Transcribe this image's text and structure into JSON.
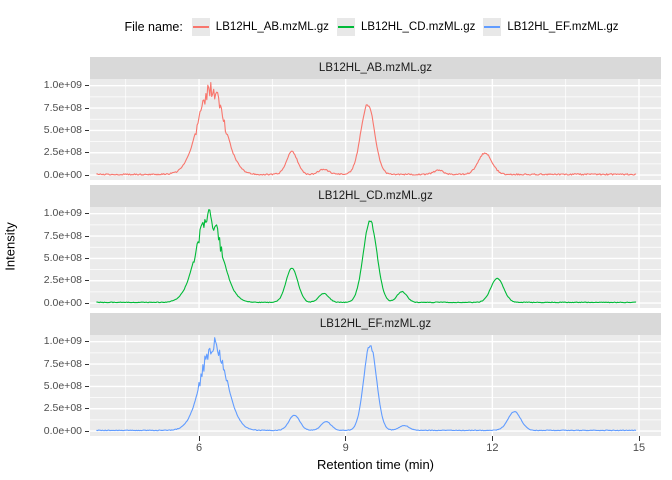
{
  "legend": {
    "title": "File name:",
    "items": [
      {
        "label": "LB12HL_AB.mzML.gz",
        "color": "#F8766D"
      },
      {
        "label": "LB12HL_CD.mzML.gz",
        "color": "#00BA38"
      },
      {
        "label": "LB12HL_EF.mzML.gz",
        "color": "#619CFF"
      }
    ],
    "key_fill": "#E8E8E8"
  },
  "chart_data": {
    "type": "line",
    "title": "",
    "xlabel": "Retention time (min)",
    "ylabel": "Intensity",
    "legend_position": "top",
    "grid": true,
    "facet_layout": "rows",
    "xlim": [
      3.77,
      15.45
    ],
    "ylim": [
      -55000000,
      1075000000
    ],
    "x_major_ticks": [
      6,
      9,
      12,
      15
    ],
    "x_tick_labels": [
      "6",
      "9",
      "12",
      "15"
    ],
    "x_minor_ticks": [
      4.5,
      7.5,
      10.5,
      13.5
    ],
    "y_major_ticks": [
      1000000000,
      750000000,
      500000000,
      250000000,
      0
    ],
    "y_tick_labels": [
      "1.0e+09",
      "7.5e+08",
      "5.0e+08",
      "2.5e+08",
      "0.0e+00"
    ],
    "y_minor_ticks": [
      125000000,
      375000000,
      625000000,
      875000000
    ],
    "panel_fill": "#EBEBEB",
    "strip_fill": "#D9D9D9",
    "gridline_color": "#FFFFFF",
    "sample_x_range": [
      3.9,
      14.95
    ],
    "sample_step": 0.02,
    "baseline_intensity": 8000000,
    "facets": [
      {
        "title": "LB12HL_AB.mzML.gz",
        "color": "#F8766D",
        "baseline_noise": 8000000,
        "peaks": [
          {
            "rt": 6.25,
            "intensity": 955000000,
            "sigma": 0.27,
            "jagged": true
          },
          {
            "rt": 7.9,
            "intensity": 255000000,
            "sigma": 0.11,
            "jagged": false
          },
          {
            "rt": 8.55,
            "intensity": 60000000,
            "sigma": 0.1,
            "jagged": false
          },
          {
            "rt": 9.45,
            "intensity": 785000000,
            "sigma": 0.14,
            "jagged": false
          },
          {
            "rt": 10.9,
            "intensity": 45000000,
            "sigma": 0.1,
            "jagged": false
          },
          {
            "rt": 11.85,
            "intensity": 240000000,
            "sigma": 0.14,
            "jagged": false
          }
        ]
      },
      {
        "title": "LB12HL_CD.mzML.gz",
        "color": "#00BA38",
        "baseline_noise": 4000000,
        "peaks": [
          {
            "rt": 6.2,
            "intensity": 960000000,
            "sigma": 0.26,
            "jagged": true
          },
          {
            "rt": 7.9,
            "intensity": 385000000,
            "sigma": 0.12,
            "jagged": false
          },
          {
            "rt": 8.55,
            "intensity": 100000000,
            "sigma": 0.1,
            "jagged": false
          },
          {
            "rt": 9.5,
            "intensity": 910000000,
            "sigma": 0.14,
            "jagged": false
          },
          {
            "rt": 10.15,
            "intensity": 120000000,
            "sigma": 0.1,
            "jagged": false
          },
          {
            "rt": 12.1,
            "intensity": 270000000,
            "sigma": 0.13,
            "jagged": false
          }
        ]
      },
      {
        "title": "LB12HL_EF.mzML.gz",
        "color": "#619CFF",
        "baseline_noise": 3500000,
        "peaks": [
          {
            "rt": 6.3,
            "intensity": 960000000,
            "sigma": 0.26,
            "jagged": true
          },
          {
            "rt": 7.95,
            "intensity": 170000000,
            "sigma": 0.11,
            "jagged": false
          },
          {
            "rt": 8.6,
            "intensity": 100000000,
            "sigma": 0.1,
            "jagged": false
          },
          {
            "rt": 9.5,
            "intensity": 960000000,
            "sigma": 0.13,
            "jagged": false
          },
          {
            "rt": 10.2,
            "intensity": 55000000,
            "sigma": 0.1,
            "jagged": false
          },
          {
            "rt": 12.45,
            "intensity": 210000000,
            "sigma": 0.13,
            "jagged": false
          }
        ]
      }
    ]
  }
}
